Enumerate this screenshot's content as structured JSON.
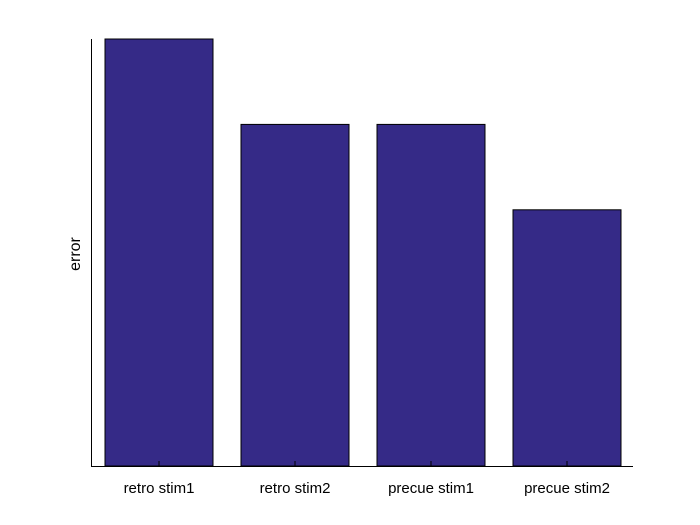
{
  "chart_data": {
    "type": "bar",
    "categories": [
      "retro stim1",
      "retro stim2",
      "precue stim1",
      "precue stim2"
    ],
    "values": [
      1.0,
      0.8,
      0.8,
      0.6
    ],
    "title": "",
    "xlabel": "",
    "ylabel": "error",
    "ylim": [
      0,
      1.0
    ],
    "grid": false,
    "y_tick_labels_shown": false,
    "colors": {
      "bar_fill": "#352a87",
      "bar_edge": "#000000",
      "axis": "#000000",
      "background": "#ffffff"
    }
  }
}
